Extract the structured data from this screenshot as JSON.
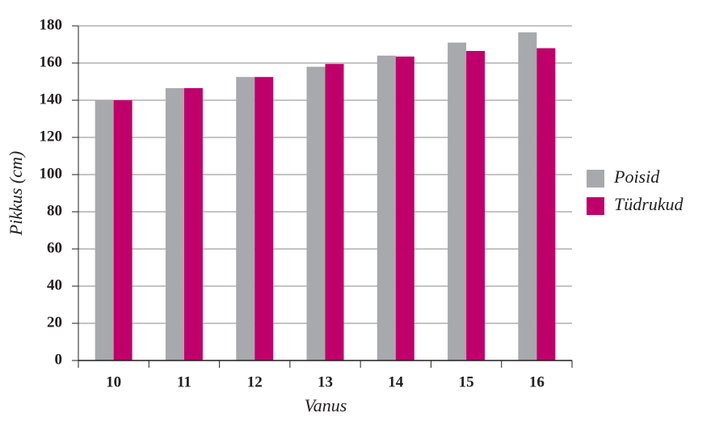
{
  "chart_data": {
    "type": "bar",
    "x_label": "Vanus",
    "y_label": "Pikkus (cm)",
    "categories": [
      "10",
      "11",
      "12",
      "13",
      "14",
      "15",
      "16"
    ],
    "series": [
      {
        "name": "Poisid",
        "color": "#a7a9ac",
        "values": [
          140,
          146.5,
          152.5,
          158,
          164,
          171,
          176.5
        ]
      },
      {
        "name": "Tüdrukud",
        "color": "#c0006a",
        "values": [
          140,
          146.5,
          152.5,
          159.5,
          163.5,
          166.5,
          168
        ]
      }
    ],
    "ylim": [
      0,
      180
    ],
    "yticks": [
      0,
      20,
      40,
      60,
      80,
      100,
      120,
      140,
      160,
      180
    ],
    "grid": true,
    "legend": "right"
  }
}
